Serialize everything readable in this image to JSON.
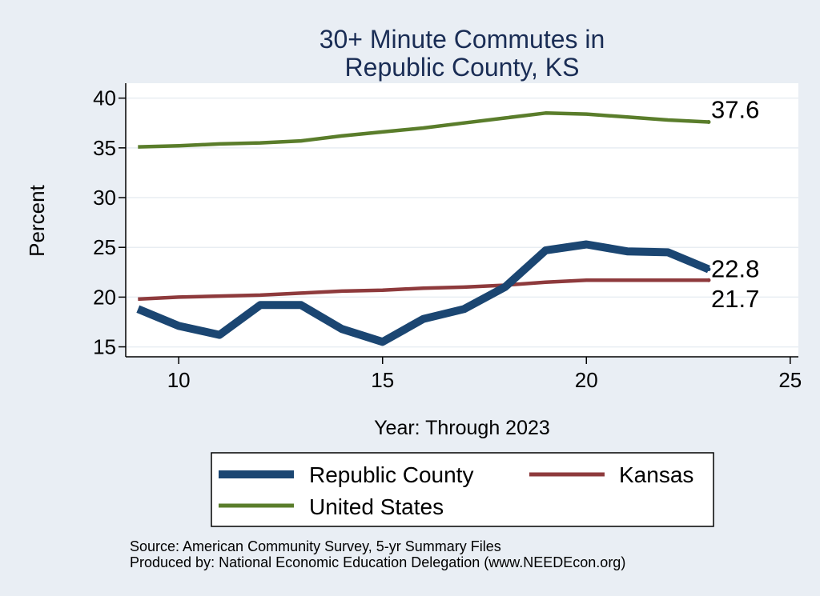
{
  "colors": {
    "background": "#e9eef4",
    "plot_background": "#ffffff",
    "title": "#1a2d55",
    "republic_county": "#1b4672",
    "kansas": "#8e3a3c",
    "united_states": "#5a7d2b"
  },
  "chart_data": {
    "type": "line",
    "title": [
      "30+ Minute Commutes in",
      "Republic County, KS"
    ],
    "xlabel": "Year: Through 2023",
    "ylabel": "Percent",
    "xlim": [
      8.7,
      25.2
    ],
    "ylim": [
      14,
      41.5
    ],
    "xticks": [
      10,
      15,
      20,
      25
    ],
    "yticks": [
      15,
      20,
      25,
      30,
      35,
      40
    ],
    "grid": true,
    "series": [
      {
        "name": "Republic County",
        "key": "republic_county",
        "x": [
          9,
          10,
          11,
          12,
          13,
          14,
          15,
          16,
          17,
          18,
          19,
          20,
          21,
          22,
          23
        ],
        "values": [
          18.8,
          17.1,
          16.2,
          19.2,
          19.2,
          16.8,
          15.5,
          17.8,
          18.8,
          21.0,
          24.7,
          25.3,
          24.6,
          24.5,
          22.8
        ],
        "end_label": "22.8"
      },
      {
        "name": "Kansas",
        "key": "kansas",
        "x": [
          9,
          10,
          11,
          12,
          13,
          14,
          15,
          16,
          17,
          18,
          19,
          20,
          21,
          22,
          23
        ],
        "values": [
          19.8,
          20.0,
          20.1,
          20.2,
          20.4,
          20.6,
          20.7,
          20.9,
          21.0,
          21.2,
          21.5,
          21.7,
          21.7,
          21.7,
          21.7
        ],
        "end_label": "21.7"
      },
      {
        "name": "United States",
        "key": "united_states",
        "x": [
          9,
          10,
          11,
          12,
          13,
          14,
          15,
          16,
          17,
          18,
          19,
          20,
          21,
          22,
          23
        ],
        "values": [
          35.1,
          35.2,
          35.4,
          35.5,
          35.7,
          36.2,
          36.6,
          37.0,
          37.5,
          38.0,
          38.5,
          38.4,
          38.1,
          37.8,
          37.6
        ],
        "end_label": "37.6"
      }
    ],
    "legend": {
      "placement": "bottom",
      "entries": [
        "Republic County",
        "Kansas",
        "United States"
      ]
    },
    "notes": [
      "Source: American Community Survey, 5-yr Summary Files",
      "Produced by: National Economic Education Delegation (www.NEEDEcon.org)"
    ]
  }
}
